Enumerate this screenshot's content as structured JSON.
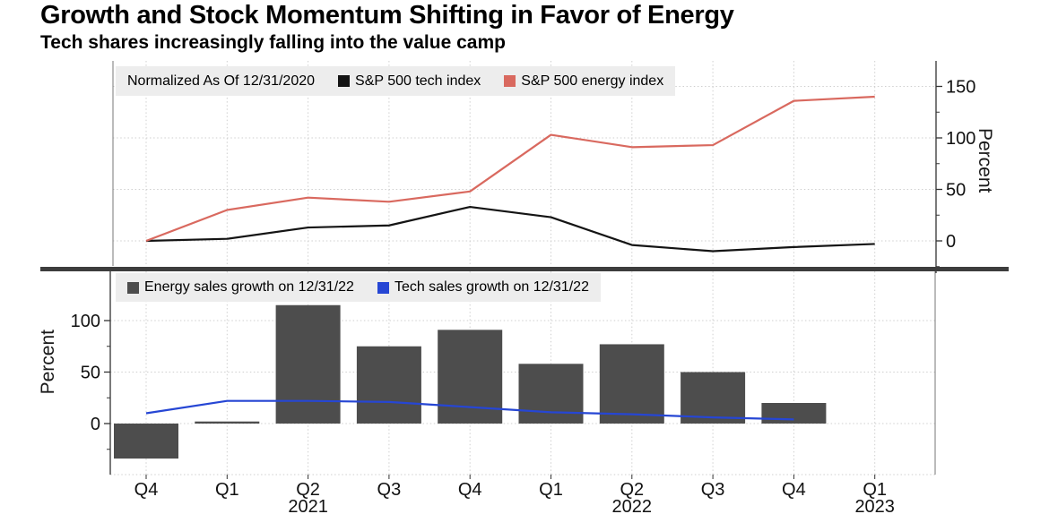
{
  "header": {
    "title": "Growth and Stock Momentum Shifting in Favor of Energy",
    "subtitle": "Tech shares increasingly falling into the value camp"
  },
  "chart_data": [
    {
      "id": "index-momentum",
      "type": "line",
      "note": "Normalized As Of 12/31/2020",
      "categories": [
        "Q4 2020",
        "Q1 2021",
        "Q2 2021",
        "Q3 2021",
        "Q4 2021",
        "Q1 2022",
        "Q2 2022",
        "Q3 2022",
        "Q4 2022",
        "Q1 2023"
      ],
      "series": [
        {
          "name": "S&P 500 tech index",
          "color": "#141414",
          "values": [
            0,
            2,
            13,
            15,
            33,
            23,
            -4,
            -10,
            -6,
            -3
          ]
        },
        {
          "name": "S&P 500 energy index",
          "color": "#d9695f",
          "values": [
            0,
            30,
            42,
            38,
            48,
            103,
            91,
            93,
            136,
            140
          ]
        }
      ],
      "ylabel": "Percent",
      "yticks": [
        0,
        50,
        100,
        150
      ],
      "minor_yticks": [
        -25,
        25,
        75,
        125
      ],
      "ylim": [
        -24,
        175
      ],
      "yaxis_side": "right",
      "grid": true,
      "legend_position": "top-left",
      "legend_bg": "#ededed"
    },
    {
      "id": "sales-growth",
      "type": "bar",
      "categories": [
        "Q4 2020",
        "Q1 2021",
        "Q2 2021",
        "Q3 2021",
        "Q4 2021",
        "Q1 2022",
        "Q2 2022",
        "Q3 2022",
        "Q4 2022",
        "Q1 2023"
      ],
      "series": [
        {
          "name": "Energy sales growth on 12/31/22",
          "type": "bar",
          "color": "#4d4d4d",
          "values": [
            -34,
            2,
            115,
            75,
            91,
            58,
            77,
            50,
            20,
            null
          ]
        },
        {
          "name": "Tech sales growth on 12/31/22",
          "type": "line",
          "color": "#2646d4",
          "values": [
            10,
            22,
            22,
            21,
            16,
            11,
            9,
            6,
            4,
            null
          ]
        }
      ],
      "ylabel": "Percent",
      "yticks": [
        0,
        50,
        100
      ],
      "minor_yticks": [
        -25,
        25,
        75
      ],
      "ylim": [
        -50,
        148
      ],
      "yaxis_side": "left",
      "grid": true,
      "legend_position": "top-left",
      "legend_bg": "#ededed",
      "x_tick_labels": [
        "Q4",
        "Q1",
        "Q2",
        "Q3",
        "Q4",
        "Q1",
        "Q2",
        "Q3",
        "Q4",
        "Q1"
      ],
      "x_year_labels": [
        {
          "index": 2,
          "label": "2021"
        },
        {
          "index": 6,
          "label": "2022"
        },
        {
          "index": 9,
          "label": "2023"
        }
      ]
    }
  ]
}
